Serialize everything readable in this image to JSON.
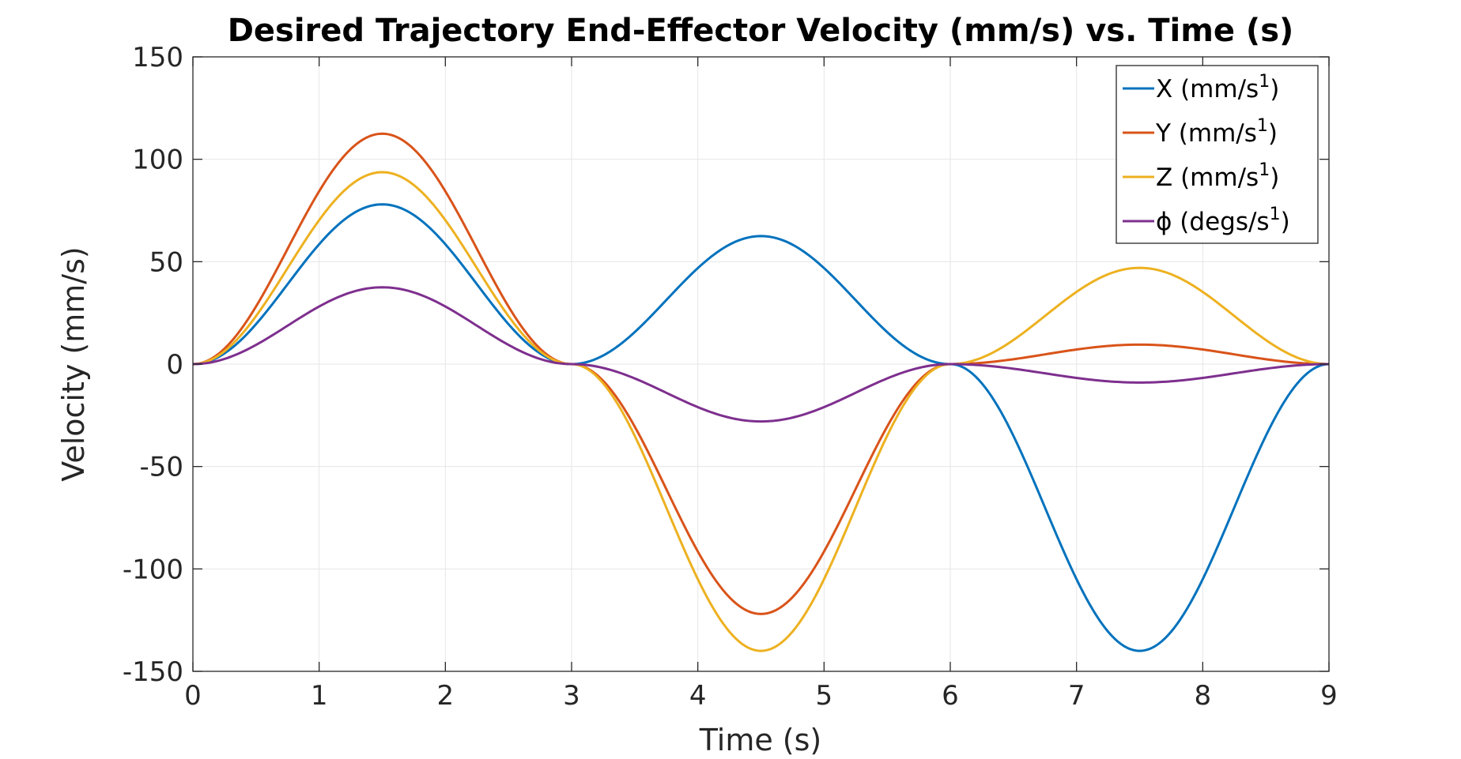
{
  "chart_data": {
    "type": "line",
    "title": "Desired Trajectory End-Effector Velocity (mm/s) vs. Time (s)",
    "xlabel": "Time (s)",
    "ylabel": "Velocity (mm/s)",
    "xlim": [
      0,
      9
    ],
    "ylim": [
      -150,
      150
    ],
    "xticks": [
      "0",
      "1",
      "2",
      "3",
      "4",
      "5",
      "6",
      "7",
      "8",
      "9"
    ],
    "yticks": [
      "150",
      "100",
      "50",
      "0",
      "-50",
      "-100",
      "-150"
    ],
    "grid": true,
    "legend_position": "top-right",
    "segments": [
      0,
      3,
      6,
      9
    ],
    "series": [
      {
        "name": "X (mm/s",
        "sup": "1",
        "tail": ")",
        "color": "#0072BD",
        "peaks": [
          78,
          62.5,
          -140
        ]
      },
      {
        "name": "Y (mm/s",
        "sup": "1",
        "tail": ")",
        "color": "#D95319",
        "peaks": [
          112.5,
          -122,
          9.5
        ]
      },
      {
        "name": "Z (mm/s",
        "sup": "1",
        "tail": ")",
        "color": "#EDB120",
        "peaks": [
          93.7,
          -140,
          47
        ]
      },
      {
        "name": "ϕ (degs/s",
        "sup": "1",
        "tail": ")",
        "color": "#7E2F8E",
        "peaks": [
          37.5,
          -28,
          -9
        ]
      }
    ]
  }
}
